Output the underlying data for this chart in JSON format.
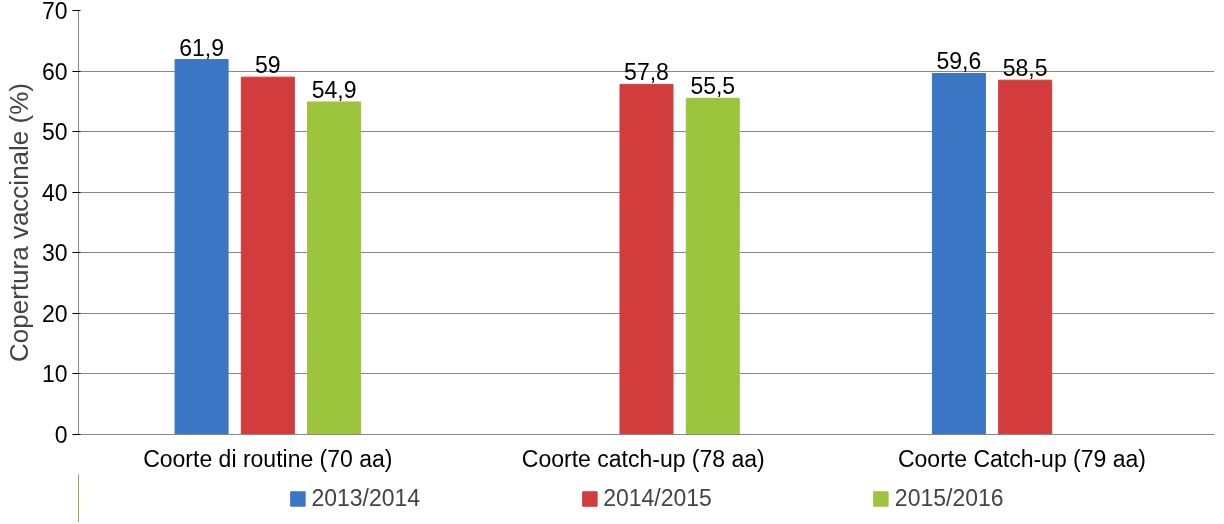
{
  "chart_data": {
    "type": "bar",
    "ylabel": "Copertura vaccinale (%)",
    "categories": [
      "Coorte di routine (70 aa)",
      "Coorte catch-up  (78 aa)",
      "Coorte Catch-up  (79 aa)"
    ],
    "series": [
      {
        "name": "2013/2014",
        "color": "#3a76c4",
        "values": [
          61.9,
          null,
          59.6
        ],
        "value_labels": [
          "61,9",
          null,
          "59,6"
        ]
      },
      {
        "name": "2014/2015",
        "color": "#d23c3c",
        "values": [
          59,
          57.8,
          58.5
        ],
        "value_labels": [
          "59",
          "57,8",
          "58,5"
        ]
      },
      {
        "name": "2015/2016",
        "color": "#9cc43c",
        "values": [
          54.9,
          55.5,
          null
        ],
        "value_labels": [
          "54,9",
          "55,5",
          null
        ]
      }
    ],
    "ylim": [
      0,
      70
    ],
    "yticks": [
      0,
      10,
      20,
      30,
      40,
      50,
      60,
      70
    ],
    "grid": "y",
    "legend": "bottom"
  }
}
